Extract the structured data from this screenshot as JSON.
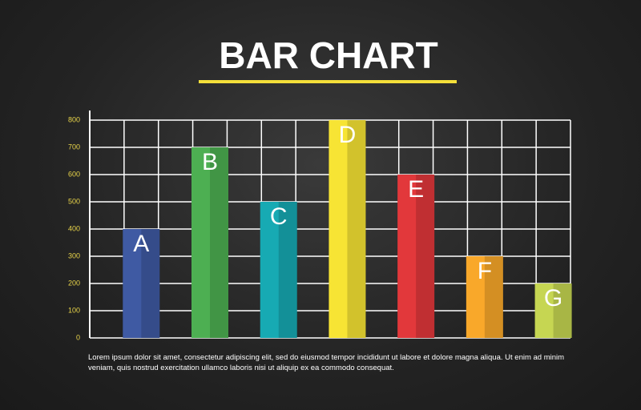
{
  "chart_data": {
    "type": "bar",
    "title": "BAR CHART",
    "categories": [
      "A",
      "B",
      "C",
      "D",
      "E",
      "F",
      "G"
    ],
    "values": [
      400,
      700,
      500,
      800,
      600,
      300,
      200
    ],
    "colors": [
      "#3f5aa3",
      "#4daf52",
      "#17aab3",
      "#f7e434",
      "#e2383b",
      "#f9a82a",
      "#c6d652"
    ],
    "ylim": [
      0,
      800
    ],
    "yticks": [
      0,
      100,
      200,
      300,
      400,
      500,
      600,
      700,
      800
    ],
    "grid": true,
    "caption": "Lorem ipsum dolor sit amet, consectetur adipiscing elit, sed do eiusmod tempor incididunt ut labore et dolore magna aliqua. Ut enim ad minim veniam, quis nostrud exercitation ullamco laboris nisi ut aliquip ex ea commodo consequat."
  }
}
